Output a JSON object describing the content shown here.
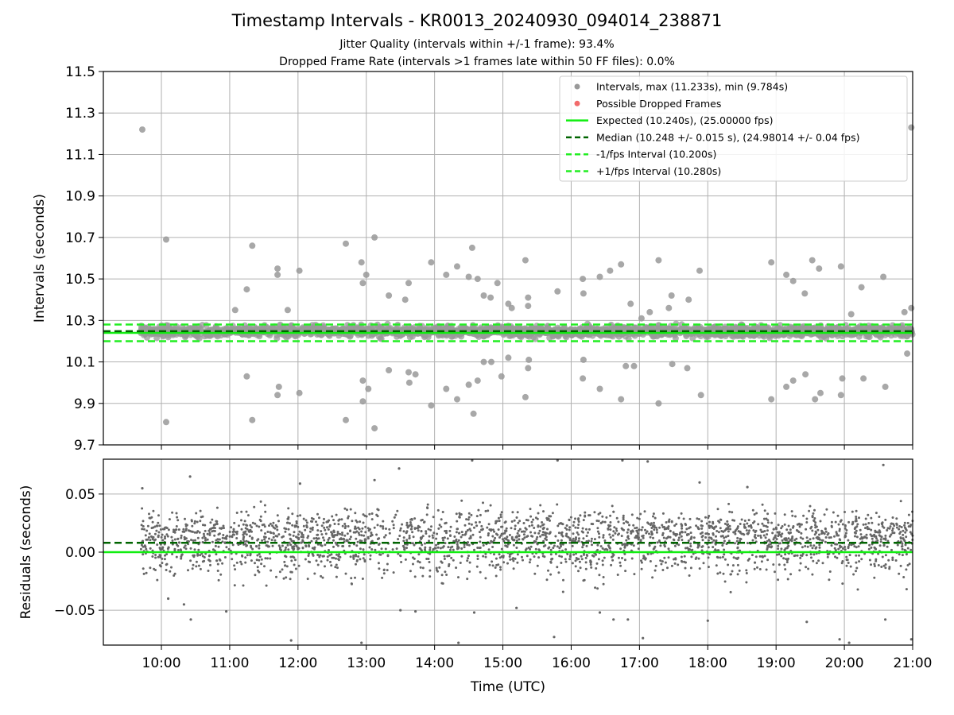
{
  "chart_data": [
    {
      "type": "scatter",
      "title": "Timestamp Intervals - KR0013_20240930_094014_238871",
      "subtitle_lines": [
        "Jitter Quality (intervals within +/-1 frame): 93.4%",
        "Dropped Frame Rate (intervals >1 frames late within 50 FF files): 0.0%"
      ],
      "ylabel": "Intervals (seconds)",
      "xlim_hours": [
        9.15,
        21.0
      ],
      "ylim": [
        9.7,
        11.5
      ],
      "yticks": [
        "9.7",
        "9.9",
        "10.1",
        "10.3",
        "10.5",
        "10.7",
        "10.9",
        "11.1",
        "11.3",
        "11.5"
      ],
      "grid": true,
      "legend_placement": "top-right",
      "legend": [
        "Intervals, max (11.233s), min (9.784s)",
        "Possible Dropped Frames",
        "Expected (10.240s), (25.00000 fps)",
        "Median (10.248 +/- 0.015 s), (24.98014 +/- 0.04 fps)",
        "-1/fps Interval (10.200s)",
        "+1/fps Interval (10.280s)"
      ],
      "lines": {
        "expected": 10.24,
        "median": 10.248,
        "minus_one_fps": 10.2,
        "plus_one_fps": 10.28
      },
      "colors": {
        "intervals": "#999999",
        "dropped": "#f26b6b",
        "expected": "#11ee11",
        "median": "#006400",
        "fps_bounds": "#22ee22"
      },
      "series": [
        {
          "name": "Intervals, max (11.233s), min (9.784s)",
          "outliers": [
            [
              9.72,
              11.22
            ],
            [
              10.07,
              10.69
            ],
            [
              10.07,
              9.81
            ],
            [
              11.08,
              10.35
            ],
            [
              11.25,
              10.45
            ],
            [
              11.25,
              10.03
            ],
            [
              11.33,
              10.66
            ],
            [
              11.33,
              9.82
            ],
            [
              11.7,
              10.55
            ],
            [
              11.7,
              10.52
            ],
            [
              11.7,
              9.94
            ],
            [
              11.72,
              9.98
            ],
            [
              11.85,
              10.35
            ],
            [
              12.02,
              10.54
            ],
            [
              12.02,
              9.95
            ],
            [
              12.7,
              10.67
            ],
            [
              12.7,
              9.82
            ],
            [
              12.93,
              10.58
            ],
            [
              12.95,
              10.48
            ],
            [
              12.95,
              9.91
            ],
            [
              12.95,
              10.01
            ],
            [
              13.0,
              10.52
            ],
            [
              13.03,
              9.97
            ],
            [
              13.12,
              10.7
            ],
            [
              13.12,
              9.78
            ],
            [
              13.33,
              10.42
            ],
            [
              13.33,
              10.06
            ],
            [
              13.57,
              10.4
            ],
            [
              13.62,
              10.48
            ],
            [
              13.62,
              10.05
            ],
            [
              13.63,
              10.0
            ],
            [
              13.72,
              10.04
            ],
            [
              13.95,
              10.58
            ],
            [
              13.95,
              9.89
            ],
            [
              14.17,
              10.52
            ],
            [
              14.17,
              9.97
            ],
            [
              14.33,
              10.56
            ],
            [
              14.33,
              9.92
            ],
            [
              14.5,
              10.51
            ],
            [
              14.5,
              9.99
            ],
            [
              14.55,
              10.65
            ],
            [
              14.57,
              9.85
            ],
            [
              14.63,
              10.5
            ],
            [
              14.63,
              10.01
            ],
            [
              14.72,
              10.42
            ],
            [
              14.72,
              10.1
            ],
            [
              14.82,
              10.41
            ],
            [
              14.83,
              10.1
            ],
            [
              14.92,
              10.48
            ],
            [
              14.98,
              10.03
            ],
            [
              15.08,
              10.38
            ],
            [
              15.08,
              10.12
            ],
            [
              15.13,
              10.36
            ],
            [
              15.33,
              10.59
            ],
            [
              15.33,
              9.93
            ],
            [
              15.37,
              10.37
            ],
            [
              15.37,
              10.41
            ],
            [
              15.37,
              10.07
            ],
            [
              15.38,
              10.11
            ],
            [
              15.5,
              10.26
            ],
            [
              15.8,
              10.44
            ],
            [
              16.17,
              10.5
            ],
            [
              16.18,
              10.43
            ],
            [
              16.17,
              10.02
            ],
            [
              16.18,
              10.11
            ],
            [
              16.42,
              10.51
            ],
            [
              16.42,
              9.97
            ],
            [
              16.57,
              10.54
            ],
            [
              16.73,
              10.57
            ],
            [
              16.73,
              9.92
            ],
            [
              16.8,
              10.08
            ],
            [
              16.87,
              10.38
            ],
            [
              16.92,
              10.08
            ],
            [
              17.03,
              10.31
            ],
            [
              17.15,
              10.34
            ],
            [
              17.28,
              10.59
            ],
            [
              17.28,
              9.9
            ],
            [
              17.43,
              10.36
            ],
            [
              17.47,
              10.42
            ],
            [
              17.48,
              10.09
            ],
            [
              17.72,
              10.4
            ],
            [
              17.7,
              10.07
            ],
            [
              17.88,
              10.54
            ],
            [
              17.9,
              9.94
            ],
            [
              18.93,
              10.58
            ],
            [
              18.93,
              9.92
            ],
            [
              19.15,
              10.52
            ],
            [
              19.15,
              9.98
            ],
            [
              19.25,
              10.49
            ],
            [
              19.25,
              10.01
            ],
            [
              19.42,
              10.43
            ],
            [
              19.43,
              10.04
            ],
            [
              19.53,
              10.59
            ],
            [
              19.57,
              9.92
            ],
            [
              19.63,
              10.55
            ],
            [
              19.65,
              9.95
            ],
            [
              19.95,
              10.56
            ],
            [
              19.95,
              9.94
            ],
            [
              19.97,
              10.02
            ],
            [
              20.1,
              10.33
            ],
            [
              20.25,
              10.46
            ],
            [
              20.28,
              10.02
            ],
            [
              20.57,
              10.51
            ],
            [
              20.6,
              9.98
            ],
            [
              20.88,
              10.34
            ],
            [
              20.92,
              10.14
            ],
            [
              20.98,
              10.36
            ],
            [
              20.98,
              11.23
            ]
          ]
        }
      ]
    },
    {
      "type": "scatter",
      "xlabel": "Time (UTC)",
      "ylabel": "Residuals (seconds)",
      "xlim_hours": [
        9.15,
        21.0
      ],
      "ylim": [
        -0.08,
        0.08
      ],
      "xticks": [
        "10:00",
        "11:00",
        "12:00",
        "13:00",
        "14:00",
        "15:00",
        "16:00",
        "17:00",
        "18:00",
        "19:00",
        "20:00",
        "21:00"
      ],
      "yticks": [
        "0.05",
        "0.00",
        "−0.05"
      ],
      "yticks_values": [
        0.05,
        0.0,
        -0.05
      ],
      "grid": true,
      "lines": {
        "zero": 0.0,
        "median_offset": 0.008
      },
      "colors": {
        "residuals": "#666666",
        "zero": "#11ee11",
        "median": "#006400"
      },
      "series": [
        {
          "name": "residuals",
          "outliers": [
            [
              9.72,
              0.055
            ],
            [
              10.1,
              -0.04
            ],
            [
              10.33,
              -0.045
            ],
            [
              10.42,
              0.065
            ],
            [
              10.43,
              -0.058
            ],
            [
              10.95,
              -0.051
            ],
            [
              11.9,
              -0.076
            ],
            [
              12.03,
              0.059
            ],
            [
              12.93,
              -0.078
            ],
            [
              13.12,
              0.062
            ],
            [
              13.48,
              0.072
            ],
            [
              13.5,
              -0.05
            ],
            [
              13.72,
              -0.051
            ],
            [
              14.35,
              -0.078
            ],
            [
              14.55,
              0.079
            ],
            [
              14.58,
              -0.052
            ],
            [
              15.2,
              -0.048
            ],
            [
              15.75,
              -0.073
            ],
            [
              15.8,
              0.079
            ],
            [
              16.42,
              -0.052
            ],
            [
              16.62,
              -0.058
            ],
            [
              16.75,
              0.079
            ],
            [
              16.83,
              -0.058
            ],
            [
              17.05,
              -0.074
            ],
            [
              17.12,
              0.078
            ],
            [
              17.88,
              0.06
            ],
            [
              18.0,
              -0.059
            ],
            [
              18.58,
              0.056
            ],
            [
              19.45,
              -0.06
            ],
            [
              19.93,
              -0.075
            ],
            [
              20.07,
              -0.078
            ],
            [
              20.57,
              0.075
            ],
            [
              20.6,
              -0.058
            ],
            [
              20.98,
              -0.075
            ]
          ]
        }
      ]
    }
  ]
}
